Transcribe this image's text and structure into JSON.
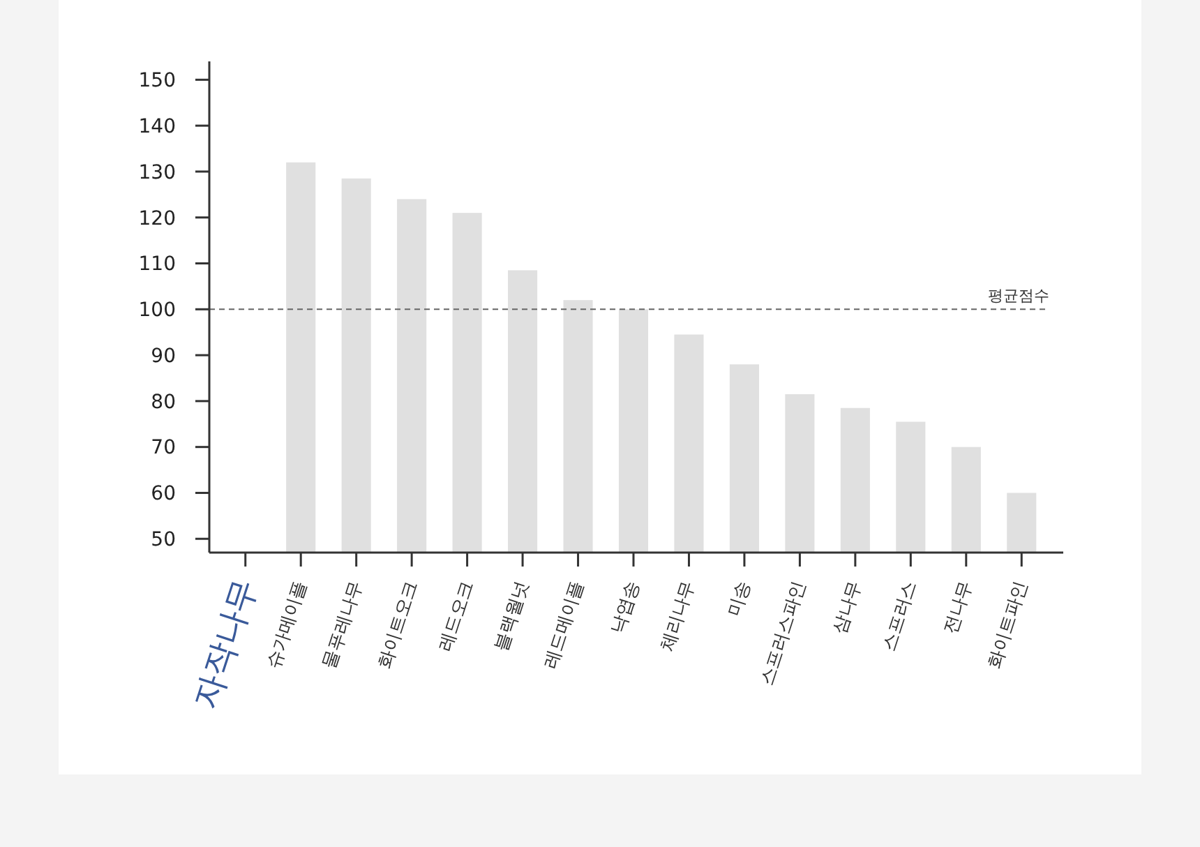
{
  "chart_data": {
    "type": "bar",
    "categories": [
      "자작나무",
      "슈가메이플",
      "물푸레나무",
      "화이트오크",
      "레드오크",
      "블랙월넛",
      "레드메이플",
      "낙엽송",
      "체리나무",
      "미송",
      "스프러스파인",
      "삼나무",
      "스프러스",
      "전나무",
      "화이트파인"
    ],
    "values": [
      null,
      132,
      128.5,
      124,
      121,
      108.5,
      102,
      100,
      94.5,
      88,
      81.5,
      78.5,
      75.5,
      70,
      60
    ],
    "color": "#e0e0e0",
    "ylim": [
      47,
      154
    ],
    "yticks": [
      50,
      60,
      70,
      80,
      90,
      100,
      110,
      120,
      130,
      140,
      150
    ],
    "grid": false,
    "ref_lines": [
      {
        "axis": "y",
        "value": 100,
        "label": "평균점수",
        "color": "#666666",
        "line_style": "dashed"
      }
    ]
  }
}
